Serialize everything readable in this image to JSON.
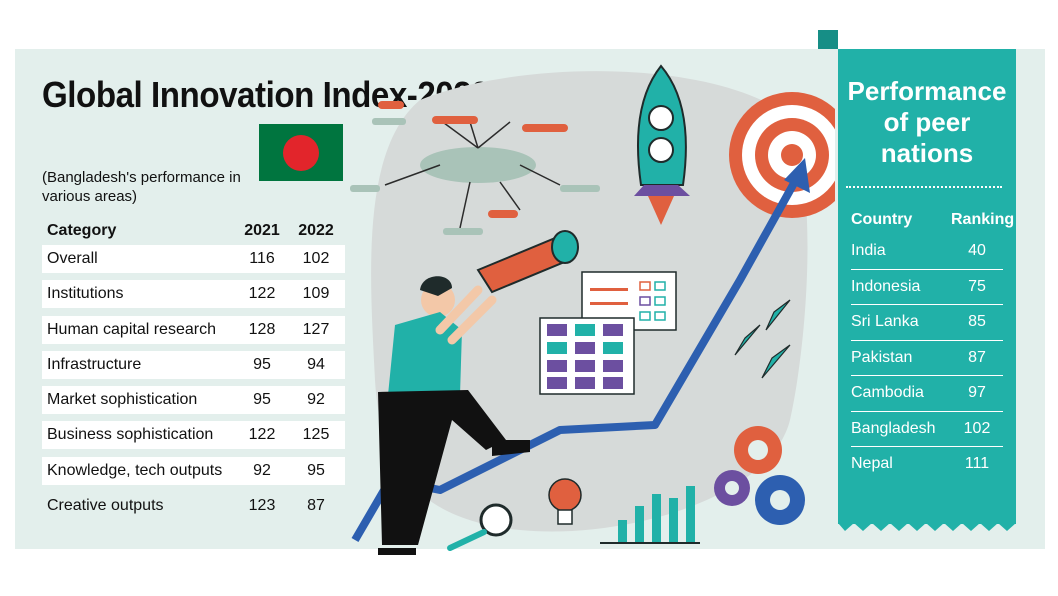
{
  "title": "Global Innovation Index-2022",
  "subtitle": "(Bangladesh's performance in various areas)",
  "table": {
    "headers": [
      "Category",
      "2021",
      "2022"
    ],
    "rows": [
      {
        "category": "Overall",
        "y2021": "116",
        "y2022": "102"
      },
      {
        "category": "Institutions",
        "y2021": "122",
        "y2022": "109"
      },
      {
        "category": "Human capital research",
        "y2021": "128",
        "y2022": "127"
      },
      {
        "category": "Infrastructure",
        "y2021": "95",
        "y2022": "94"
      },
      {
        "category": "Market sophistication",
        "y2021": "95",
        "y2022": "92"
      },
      {
        "category": "Business sophistication",
        "y2021": "122",
        "y2022": "125"
      },
      {
        "category": "Knowledge, tech outputs",
        "y2021": "92",
        "y2022": "95"
      },
      {
        "category": "Creative outputs",
        "y2021": "123",
        "y2022": "87"
      }
    ]
  },
  "peer": {
    "title": "Performance of peer nations",
    "headers": [
      "Country",
      "Ranking"
    ],
    "rows": [
      {
        "country": "India",
        "ranking": "40"
      },
      {
        "country": "Indonesia",
        "ranking": "75"
      },
      {
        "country": "Sri Lanka",
        "ranking": "85"
      },
      {
        "country": "Pakistan",
        "ranking": "87"
      },
      {
        "country": "Cambodia",
        "ranking": "97"
      },
      {
        "country": "Bangladesh",
        "ranking": "102"
      },
      {
        "country": "Nepal",
        "ranking": "111"
      }
    ]
  },
  "colors": {
    "panel": "#e3efec",
    "teal": "#21b1a8",
    "flag_green": "#00753f",
    "flag_red": "#e2252b",
    "accent_orange": "#e0603f",
    "arrow_blue": "#2d5fb0",
    "gear_purple": "#6c4fa0"
  },
  "illustration": {
    "elements": [
      "person-with-telescope",
      "target-icon",
      "rocket-icon",
      "growth-arrow",
      "lightbulb-icon",
      "magnifier-icon",
      "gear-icons",
      "bar-chart-icon",
      "paper-plane-icons",
      "checklist-card",
      "calendar-card",
      "mind-map"
    ]
  }
}
